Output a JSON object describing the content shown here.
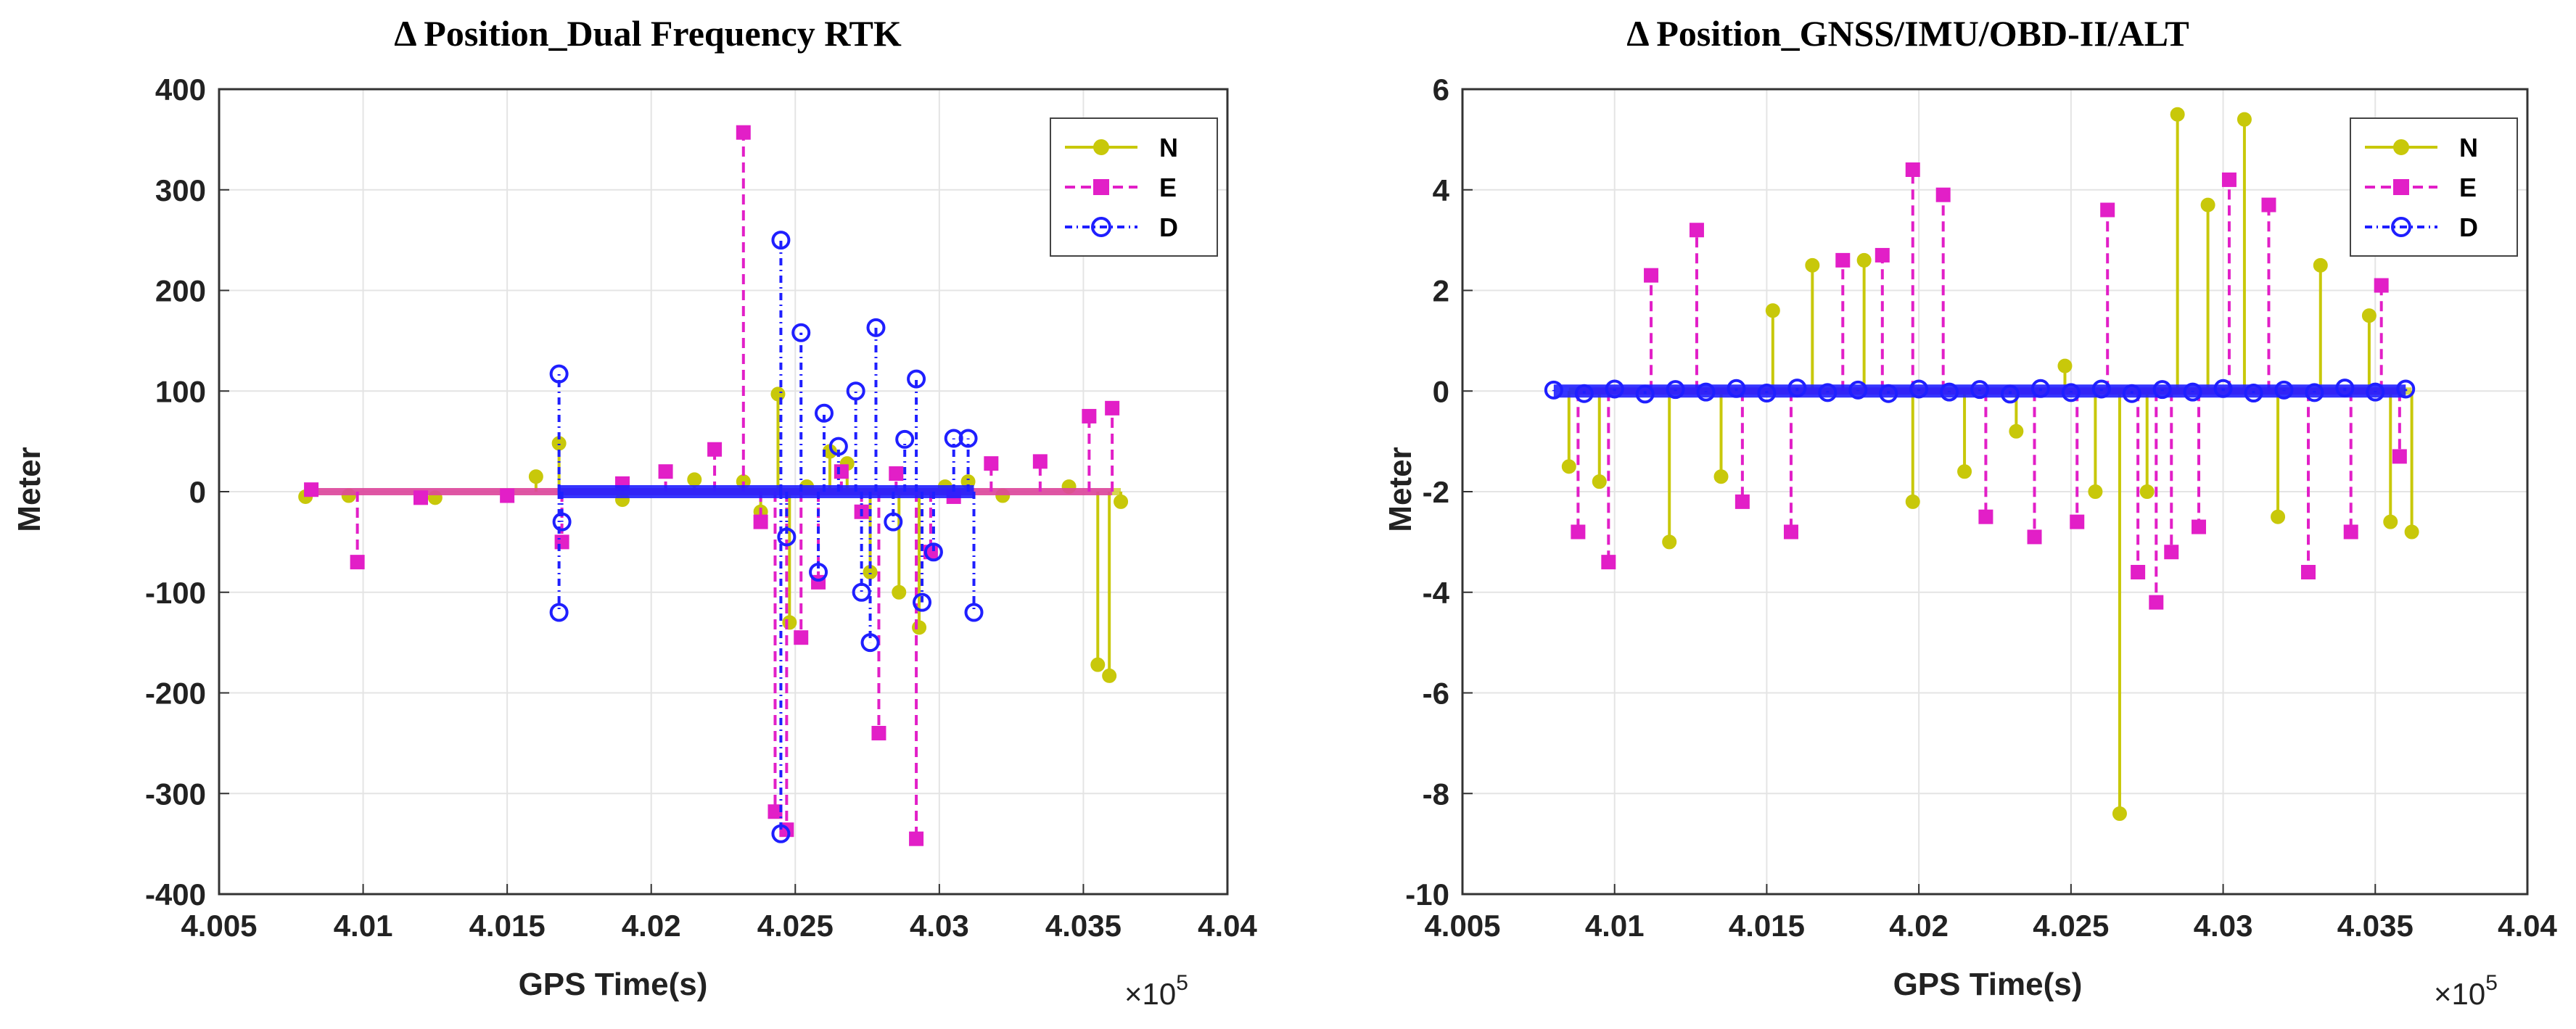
{
  "chart_data": [
    {
      "type": "line",
      "title": "Δ Position_Dual Frequency RTK",
      "xlabel": "GPS Time(s)",
      "ylabel": "Meter",
      "x_exponent_label": "×10",
      "x_exponent_power": "5",
      "xlim": [
        4.005,
        4.04
      ],
      "ylim": [
        -400,
        400
      ],
      "xticks": [
        "4.005",
        "4.01",
        "4.015",
        "4.02",
        "4.025",
        "4.03",
        "4.035",
        "4.04"
      ],
      "yticks": [
        "400",
        "300",
        "200",
        "100",
        "0",
        "-100",
        "-200",
        "-300",
        "-400"
      ],
      "grid": true,
      "legend_position": "top-right",
      "series": [
        {
          "name": "N",
          "color": "#c8c80a",
          "marker": "filled-circle",
          "x": [
            4.008,
            4.0095,
            4.0125,
            4.016,
            4.0168,
            4.019,
            4.0215,
            4.0232,
            4.0238,
            4.0244,
            4.0248,
            4.0254,
            4.0262,
            4.0268,
            4.0276,
            4.0286,
            4.0293,
            4.0302,
            4.031,
            4.0322,
            4.0345,
            4.0355,
            4.0359,
            4.0363
          ],
          "y": [
            -5,
            -4,
            -6,
            15,
            48,
            -8,
            12,
            10,
            -20,
            97,
            -130,
            5,
            40,
            28,
            -80,
            -100,
            -135,
            5,
            10,
            -4,
            5,
            -172,
            -183,
            -10
          ]
        },
        {
          "name": "E",
          "color": "#e21fc7",
          "marker": "filled-square",
          "x": [
            4.0082,
            4.0098,
            4.012,
            4.015,
            4.0169,
            4.019,
            4.0205,
            4.0222,
            4.0232,
            4.0238,
            4.0243,
            4.0247,
            4.0252,
            4.0258,
            4.0266,
            4.0273,
            4.0279,
            4.0285,
            4.0292,
            4.0297,
            4.0305,
            4.0318,
            4.0335,
            4.0352,
            4.036
          ],
          "y": [
            2,
            -70,
            -6,
            -4,
            -50,
            8,
            20,
            42,
            357,
            -30,
            -318,
            -336,
            -145,
            -90,
            20,
            -20,
            -240,
            18,
            -345,
            -60,
            -5,
            28,
            30,
            75,
            83
          ]
        },
        {
          "name": "D",
          "color": "#1f1fff",
          "marker": "open-circle",
          "x": [
            4.0168,
            4.0168,
            4.0169,
            4.0245,
            4.0245,
            4.0247,
            4.0252,
            4.0258,
            4.026,
            4.0265,
            4.0271,
            4.0273,
            4.0276,
            4.0278,
            4.0284,
            4.0288,
            4.0292,
            4.0294,
            4.0298,
            4.0305,
            4.031,
            4.0312
          ],
          "y": [
            -120,
            117,
            -30,
            250,
            -340,
            -45,
            158,
            -80,
            78,
            45,
            100,
            -100,
            -150,
            163,
            -30,
            52,
            112,
            -110,
            -60,
            53,
            53,
            -120
          ]
        }
      ]
    },
    {
      "type": "line",
      "title": "Δ Position_GNSS/IMU/OBD-II/ALT",
      "xlabel": "GPS Time(s)",
      "ylabel": "Meter",
      "x_exponent_label": "×10",
      "x_exponent_power": "5",
      "xlim": [
        4.005,
        4.04
      ],
      "ylim": [
        -10,
        6
      ],
      "xticks": [
        "4.005",
        "4.01",
        "4.015",
        "4.02",
        "4.025",
        "4.03",
        "4.035",
        "4.04"
      ],
      "yticks": [
        "6",
        "4",
        "2",
        "0",
        "-2",
        "-4",
        "-6",
        "-8",
        "-10"
      ],
      "grid": true,
      "legend_position": "top-right",
      "series": [
        {
          "name": "N",
          "color": "#c8c80a",
          "marker": "filled-circle",
          "x": [
            4.0085,
            4.0095,
            4.0118,
            4.0135,
            4.0152,
            4.0165,
            4.0182,
            4.0198,
            4.0215,
            4.0232,
            4.0248,
            4.0258,
            4.0266,
            4.0275,
            4.0285,
            4.0295,
            4.0307,
            4.0318,
            4.0332,
            4.0348,
            4.0355,
            4.0362
          ],
          "y": [
            -1.5,
            -1.8,
            -3.0,
            -1.7,
            1.6,
            2.5,
            2.6,
            -2.2,
            -1.6,
            -0.8,
            0.5,
            -2.0,
            -8.4,
            -2.0,
            5.5,
            3.7,
            5.4,
            -2.5,
            2.5,
            1.5,
            -2.6,
            -2.8
          ]
        },
        {
          "name": "E",
          "color": "#e21fc7",
          "marker": "filled-square",
          "x": [
            4.0088,
            4.0098,
            4.0112,
            4.0127,
            4.0142,
            4.0158,
            4.0175,
            4.0188,
            4.0198,
            4.0208,
            4.0222,
            4.0238,
            4.0252,
            4.0262,
            4.0272,
            4.0278,
            4.0283,
            4.0292,
            4.0302,
            4.0315,
            4.0328,
            4.0342,
            4.0352,
            4.0358
          ],
          "y": [
            -2.8,
            -3.4,
            2.3,
            3.2,
            -2.2,
            -2.8,
            2.6,
            2.7,
            4.4,
            3.9,
            -2.5,
            -2.9,
            -2.6,
            3.6,
            -3.6,
            -4.2,
            -3.2,
            -2.7,
            4.2,
            3.7,
            -3.6,
            -2.8,
            2.1,
            -1.3
          ]
        },
        {
          "name": "D",
          "color": "#1f1fff",
          "marker": "open-circle",
          "x": [
            4.008,
            4.009,
            4.01,
            4.011,
            4.012,
            4.013,
            4.014,
            4.015,
            4.016,
            4.017,
            4.018,
            4.019,
            4.02,
            4.021,
            4.022,
            4.023,
            4.024,
            4.025,
            4.026,
            4.027,
            4.028,
            4.029,
            4.03,
            4.031,
            4.032,
            4.033,
            4.034,
            4.035,
            4.036
          ],
          "y": [
            0.02,
            -0.05,
            0.04,
            -0.06,
            0.03,
            -0.02,
            0.05,
            -0.04,
            0.06,
            -0.03,
            0.02,
            -0.05,
            0.04,
            -0.02,
            0.03,
            -0.06,
            0.05,
            -0.03,
            0.04,
            -0.05,
            0.03,
            -0.02,
            0.05,
            -0.04,
            0.02,
            -0.03,
            0.06,
            -0.02,
            0.04
          ]
        }
      ]
    }
  ]
}
